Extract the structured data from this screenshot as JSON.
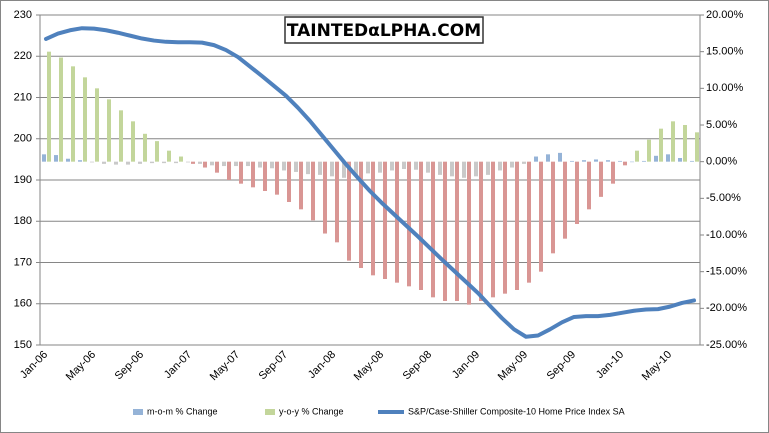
{
  "chart_data": {
    "type": "bar_line",
    "watermark": "TAINTEDαLPHA.COM",
    "categories": [
      "Jan-06",
      null,
      null,
      null,
      "May-06",
      null,
      null,
      null,
      "Sep-06",
      null,
      null,
      null,
      "Jan-07",
      null,
      null,
      null,
      "May-07",
      null,
      null,
      null,
      "Sep-07",
      null,
      null,
      null,
      "Jan-08",
      null,
      null,
      null,
      "May-08",
      null,
      null,
      null,
      "Sep-08",
      null,
      null,
      null,
      "Jan-09",
      null,
      null,
      null,
      "May-09",
      null,
      null,
      null,
      "Sep-09",
      null,
      null,
      null,
      "Jan-10",
      null,
      null,
      null,
      "May-10",
      null,
      null
    ],
    "series": [
      {
        "name": "m-o-m % Change",
        "type": "bar",
        "axis": "y2",
        "color": "#95b3d7",
        "negative_color": "#c9c9c9",
        "values": [
          1.0,
          0.9,
          0.4,
          0.2,
          -0.1,
          -0.3,
          -0.4,
          -0.4,
          -0.3,
          -0.2,
          -0.2,
          -0.2,
          -0.1,
          -0.3,
          -0.5,
          -0.6,
          -0.6,
          -0.6,
          -0.8,
          -0.9,
          -1.2,
          -1.4,
          -1.7,
          -1.8,
          -2.0,
          -2.2,
          -2.0,
          -1.6,
          -1.5,
          -1.2,
          -1.0,
          -1.1,
          -1.5,
          -1.8,
          -2.0,
          -2.2,
          -2.0,
          -1.8,
          -1.2,
          -0.8,
          -0.3,
          0.7,
          1.0,
          1.2,
          0.1,
          0.2,
          0.3,
          0.2,
          0.1,
          0.0,
          0.1,
          0.8,
          1.0,
          0.5,
          0.1
        ]
      },
      {
        "name": "y-o-y % Change",
        "type": "bar",
        "axis": "y2",
        "color": "#c3d69b",
        "negative_color": "#d99694",
        "values": [
          15.0,
          14.2,
          13.0,
          11.5,
          10.0,
          8.5,
          7.0,
          5.5,
          3.8,
          2.8,
          1.5,
          0.7,
          -0.3,
          -0.8,
          -1.5,
          -2.5,
          -3.0,
          -3.5,
          -4.0,
          -4.5,
          -5.5,
          -6.5,
          -8.0,
          -9.8,
          -11.0,
          -13.5,
          -14.5,
          -15.5,
          -16.0,
          -16.5,
          -17.0,
          -17.5,
          -18.5,
          -19.0,
          -19.0,
          -19.5,
          -19.0,
          -18.5,
          -18.0,
          -17.5,
          -16.5,
          -15.0,
          -12.5,
          -10.5,
          -8.5,
          -6.5,
          -4.8,
          -3.0,
          -0.5,
          1.5,
          3.0,
          4.5,
          5.5,
          5.0,
          4.0
        ]
      },
      {
        "name": "S&P/Case-Shiller Composite-10 Home Price Index SA",
        "type": "line",
        "axis": "y",
        "color": "#4f81bd",
        "values": [
          224.2,
          225.5,
          226.3,
          226.8,
          226.7,
          226.3,
          225.7,
          225.0,
          224.3,
          223.8,
          223.5,
          223.4,
          223.4,
          223.3,
          222.7,
          221.5,
          219.8,
          217.5,
          215.2,
          212.8,
          210.4,
          207.5,
          204.3,
          200.8,
          197.3,
          193.8,
          190.5,
          187.3,
          184.4,
          181.7,
          179.0,
          176.3,
          173.5,
          170.7,
          168.0,
          165.3,
          162.6,
          159.5,
          156.5,
          153.8,
          152.0,
          152.3,
          153.8,
          155.5,
          156.8,
          157.0,
          157.0,
          157.3,
          157.8,
          158.3,
          158.6,
          158.7,
          159.3,
          160.2,
          160.8
        ]
      }
    ],
    "ylim": [
      150,
      230
    ],
    "yticks": [
      150,
      160,
      170,
      180,
      190,
      200,
      210,
      220,
      230
    ],
    "y2lim": [
      -25,
      20
    ],
    "y2ticks": [
      {
        "value": -25,
        "label": "-25.00%"
      },
      {
        "value": -20,
        "label": "-20.00%"
      },
      {
        "value": -15,
        "label": "-15.00%"
      },
      {
        "value": -10,
        "label": "-10.00%"
      },
      {
        "value": -5,
        "label": "-5.00%"
      },
      {
        "value": 0,
        "label": "0.00%"
      },
      {
        "value": 5,
        "label": "5.00%"
      },
      {
        "value": 10,
        "label": "10.00%"
      },
      {
        "value": 15,
        "label": "15.00%"
      },
      {
        "value": 20,
        "label": "20.00%"
      }
    ],
    "grid": true,
    "legend": "bottom"
  }
}
